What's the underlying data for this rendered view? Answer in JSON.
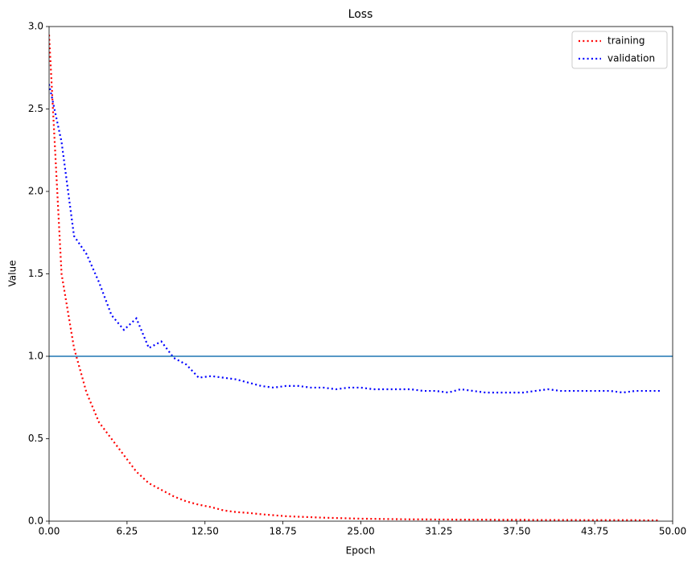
{
  "chart_data": {
    "type": "line",
    "title": "Loss",
    "x_label": "Epoch",
    "y_label": "Value",
    "x": [
      0,
      1,
      2,
      3,
      4,
      5,
      6,
      7,
      8,
      9,
      10,
      11,
      12,
      13,
      14,
      15,
      16,
      17,
      18,
      19,
      20,
      21,
      22,
      23,
      24,
      25,
      26,
      27,
      28,
      29,
      30,
      31,
      32,
      33,
      34,
      35,
      36,
      37,
      38,
      39,
      40,
      41,
      42,
      43,
      44,
      45,
      46,
      47,
      48,
      49
    ],
    "series": [
      {
        "name": "training",
        "color": "#ff0000",
        "values": [
          2.95,
          1.5,
          1.05,
          0.78,
          0.6,
          0.5,
          0.4,
          0.3,
          0.23,
          0.19,
          0.15,
          0.12,
          0.1,
          0.085,
          0.065,
          0.055,
          0.05,
          0.042,
          0.036,
          0.03,
          0.027,
          0.024,
          0.021,
          0.019,
          0.017,
          0.015,
          0.014,
          0.013,
          0.012,
          0.011,
          0.011,
          0.01,
          0.01,
          0.009,
          0.009,
          0.009,
          0.008,
          0.008,
          0.008,
          0.007,
          0.007,
          0.007,
          0.007,
          0.006,
          0.006,
          0.006,
          0.006,
          0.006,
          0.005,
          0.005
        ]
      },
      {
        "name": "validation",
        "color": "#0000ff",
        "values": [
          2.65,
          2.3,
          1.73,
          1.62,
          1.45,
          1.25,
          1.16,
          1.23,
          1.05,
          1.09,
          0.99,
          0.95,
          0.87,
          0.88,
          0.87,
          0.86,
          0.84,
          0.82,
          0.81,
          0.82,
          0.82,
          0.81,
          0.81,
          0.8,
          0.81,
          0.81,
          0.8,
          0.8,
          0.8,
          0.8,
          0.79,
          0.79,
          0.78,
          0.8,
          0.79,
          0.78,
          0.78,
          0.78,
          0.78,
          0.79,
          0.8,
          0.79,
          0.79,
          0.79,
          0.79,
          0.79,
          0.78,
          0.79,
          0.79,
          0.79
        ]
      }
    ],
    "hline": {
      "value": 1.0,
      "color": "#1f77b4"
    },
    "xlim": [
      0,
      50
    ],
    "ylim": [
      0,
      3
    ],
    "xticks": [
      {
        "value": 0,
        "label": "0.00"
      },
      6.25,
      {
        "value": 12.5,
        "label": "12.50"
      },
      18.75,
      {
        "value": 25,
        "label": "25.00"
      },
      31.25,
      {
        "value": 37.5,
        "label": "37.50"
      },
      43.75,
      {
        "value": 50,
        "label": "50.00"
      }
    ],
    "yticks": [
      {
        "value": 0,
        "label": "0.0"
      },
      0.5,
      {
        "value": 1,
        "label": "1.0"
      },
      1.5,
      {
        "value": 2,
        "label": "2.0"
      },
      2.5,
      {
        "value": 3,
        "label": "3.0"
      }
    ],
    "legend": "upper right",
    "grid": false
  }
}
